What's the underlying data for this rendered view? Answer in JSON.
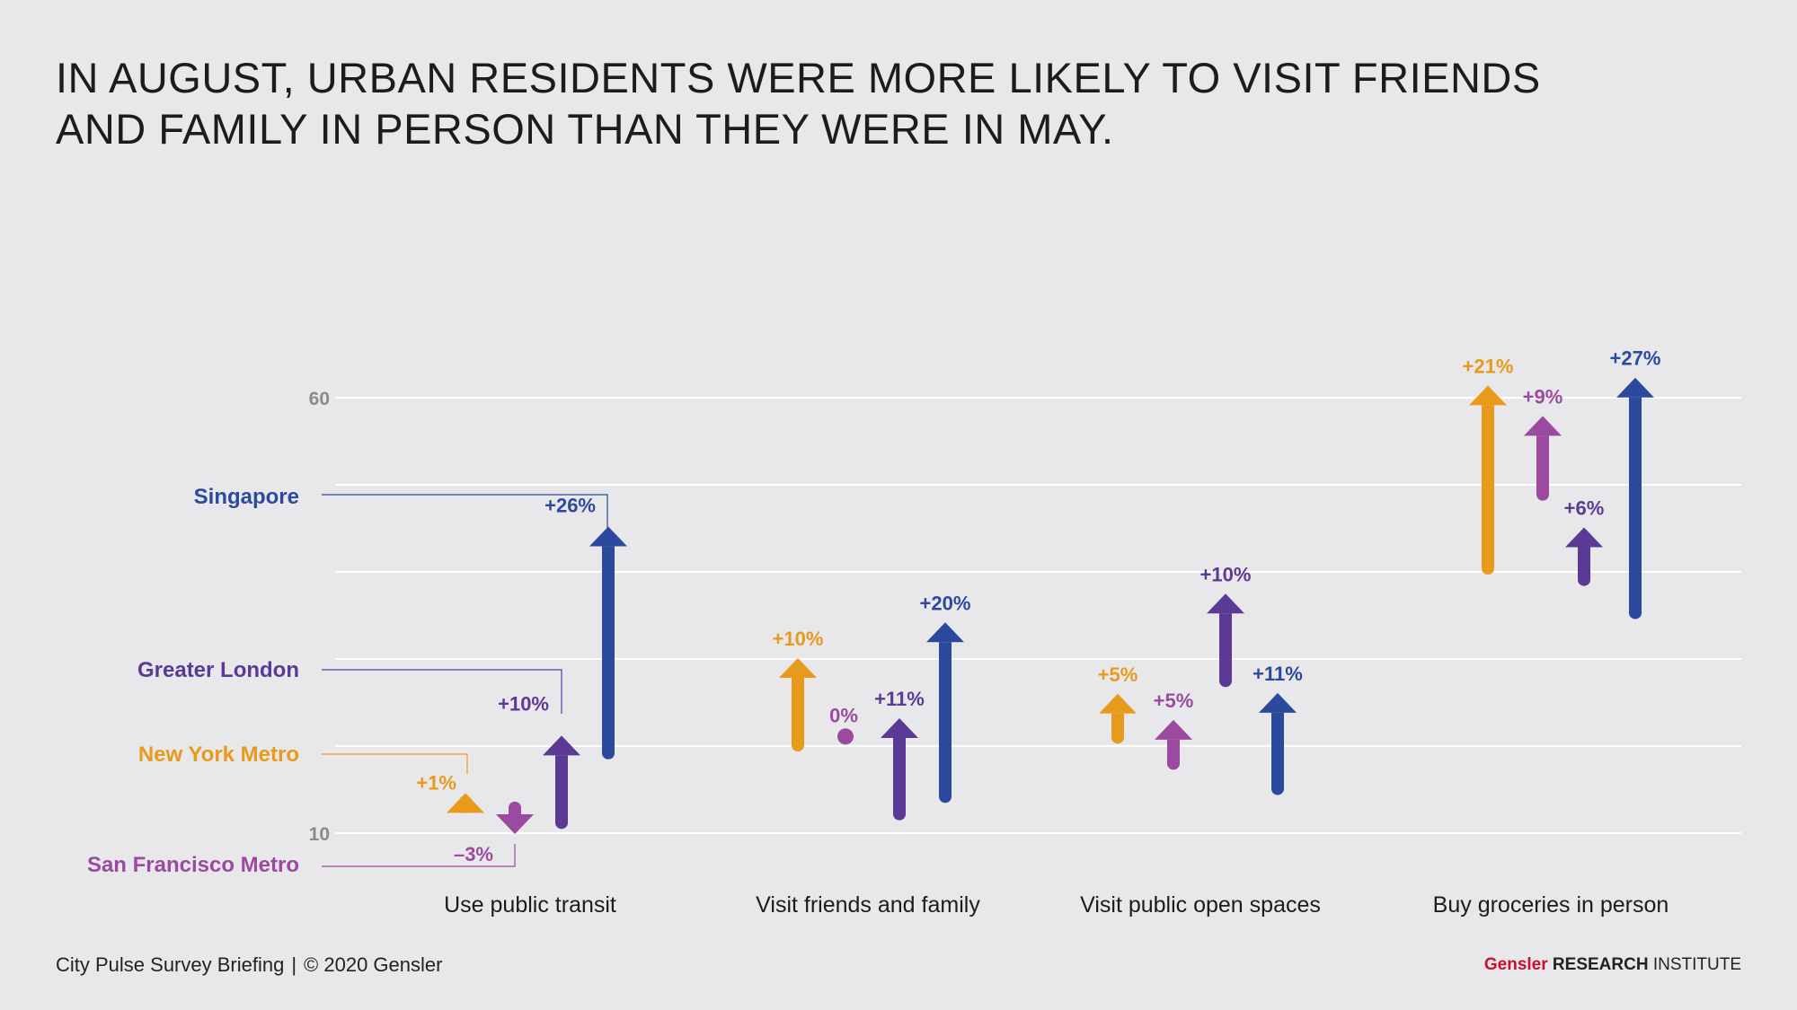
{
  "headline": {
    "line1": "IN AUGUST, URBAN RESIDENTS WERE MORE LIKELY TO VISIT FRIENDS",
    "line2": "AND FAMILY IN PERSON THAN THEY WERE IN MAY."
  },
  "footer": {
    "left": "City Pulse Survey Briefing",
    "separator": "|",
    "copyright": "© 2020 Gensler",
    "brand": "Gensler",
    "research": "RESEARCH",
    "institute": "INSTITUTE"
  },
  "chart_data": {
    "type": "arrow",
    "ylim": [
      10,
      60
    ],
    "y_tick_labels": [
      {
        "value": 60,
        "label": "60"
      },
      {
        "value": 10,
        "label": "10"
      }
    ],
    "grid": true,
    "categories": [
      "Use public transit",
      "Visit friends and family",
      "Visit public open spaces",
      "Buy groceries in person"
    ],
    "series": [
      {
        "name": "New York Metro",
        "color": "#e89a1c",
        "may": [
          13.6,
          20.1,
          21.0,
          40.4
        ],
        "august": [
          14.6,
          30.1,
          26.0,
          61.4
        ],
        "labels": [
          "+1%",
          "+10%",
          "+5%",
          "+21%"
        ]
      },
      {
        "name": "San Francisco Metro",
        "color": "#9b4a9f",
        "may": [
          12.9,
          21.1,
          18.0,
          48.9
        ],
        "august": [
          9.9,
          21.1,
          23.0,
          57.9
        ],
        "labels": [
          "–3%",
          "0%",
          "+5%",
          "+9%"
        ]
      },
      {
        "name": "Greater London",
        "color": "#5b3a96",
        "may": [
          11.2,
          12.2,
          27.5,
          39.1
        ],
        "august": [
          21.2,
          23.2,
          37.5,
          45.1
        ],
        "labels": [
          "+10%",
          "+11%",
          "+10%",
          "+6%"
        ]
      },
      {
        "name": "Singapore",
        "color": "#2b4a9e",
        "may": [
          19.2,
          14.2,
          15.1,
          35.3
        ],
        "august": [
          45.2,
          34.2,
          26.1,
          62.3
        ],
        "labels": [
          "+26%",
          "+20%",
          "+11%",
          "+27%"
        ]
      }
    ]
  }
}
